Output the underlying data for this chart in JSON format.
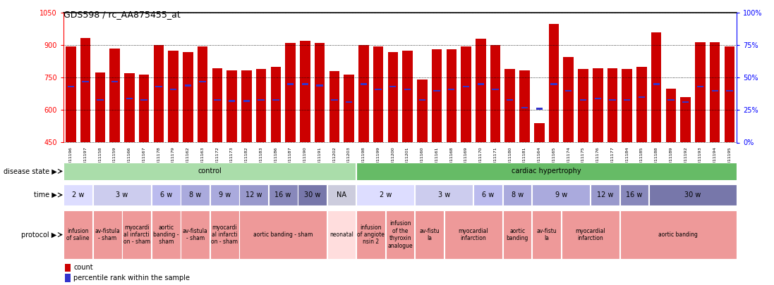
{
  "title": "GDS598 / rc_AA875455_at",
  "samples": [
    "GSM11196",
    "GSM11197",
    "GSM11158",
    "GSM11159",
    "GSM11166",
    "GSM11167",
    "GSM11178",
    "GSM11179",
    "GSM11162",
    "GSM11163",
    "GSM11172",
    "GSM11173",
    "GSM11182",
    "GSM11183",
    "GSM11186",
    "GSM11187",
    "GSM11190",
    "GSM11191",
    "GSM11202",
    "GSM11203",
    "GSM11198",
    "GSM11199",
    "GSM11200",
    "GSM11201",
    "GSM11160",
    "GSM11161",
    "GSM11168",
    "GSM11169",
    "GSM11170",
    "GSM11171",
    "GSM11180",
    "GSM11181",
    "GSM11164",
    "GSM11165",
    "GSM11174",
    "GSM11175",
    "GSM11176",
    "GSM11177",
    "GSM11184",
    "GSM11185",
    "GSM11188",
    "GSM11189",
    "GSM11192",
    "GSM11193",
    "GSM11194",
    "GSM11195"
  ],
  "counts": [
    895,
    935,
    775,
    885,
    770,
    765,
    900,
    875,
    870,
    895,
    795,
    785,
    785,
    790,
    800,
    910,
    920,
    910,
    780,
    765,
    900,
    895,
    870,
    875,
    740,
    880,
    880,
    895,
    930,
    900,
    790,
    785,
    540,
    1000,
    845,
    790,
    795,
    795,
    790,
    800,
    960,
    700,
    660,
    915,
    915,
    895
  ],
  "percentile_ranks_pct": [
    43,
    47,
    33,
    47,
    34,
    33,
    43,
    41,
    44,
    47,
    33,
    32,
    32,
    33,
    33,
    45,
    45,
    44,
    33,
    31,
    45,
    41,
    43,
    41,
    33,
    40,
    41,
    43,
    45,
    41,
    33,
    27,
    26,
    45,
    40,
    33,
    34,
    33,
    33,
    35,
    45,
    33,
    31,
    43,
    40,
    40
  ],
  "ylim_left": [
    450,
    1050
  ],
  "ylim_right": [
    0,
    100
  ],
  "yticks_left": [
    450,
    600,
    750,
    900,
    1050
  ],
  "yticks_right": [
    0,
    25,
    50,
    75,
    100
  ],
  "bar_color": "#CC0000",
  "blue_color": "#3333CC",
  "disease_state_groups": [
    {
      "label": "control",
      "start": 0,
      "end": 20,
      "color": "#AADDAA"
    },
    {
      "label": "cardiac hypertrophy",
      "start": 20,
      "end": 46,
      "color": "#66BB66"
    }
  ],
  "time_groups": [
    {
      "label": "2 w",
      "start": 0,
      "end": 2,
      "color": "#DDDDFF"
    },
    {
      "label": "3 w",
      "start": 2,
      "end": 6,
      "color": "#CCCCEE"
    },
    {
      "label": "6 w",
      "start": 6,
      "end": 8,
      "color": "#BBBBEE"
    },
    {
      "label": "8 w",
      "start": 8,
      "end": 10,
      "color": "#AAAADD"
    },
    {
      "label": "9 w",
      "start": 10,
      "end": 12,
      "color": "#AAAADD"
    },
    {
      "label": "12 w",
      "start": 12,
      "end": 14,
      "color": "#9999CC"
    },
    {
      "label": "16 w",
      "start": 14,
      "end": 16,
      "color": "#8888BB"
    },
    {
      "label": "30 w",
      "start": 16,
      "end": 18,
      "color": "#7777AA"
    },
    {
      "label": "NA",
      "start": 18,
      "end": 20,
      "color": "#CCCCDD"
    },
    {
      "label": "2 w",
      "start": 20,
      "end": 24,
      "color": "#DDDDFF"
    },
    {
      "label": "3 w",
      "start": 24,
      "end": 28,
      "color": "#CCCCEE"
    },
    {
      "label": "6 w",
      "start": 28,
      "end": 30,
      "color": "#BBBBEE"
    },
    {
      "label": "8 w",
      "start": 30,
      "end": 32,
      "color": "#AAAADD"
    },
    {
      "label": "9 w",
      "start": 32,
      "end": 36,
      "color": "#AAAADD"
    },
    {
      "label": "12 w",
      "start": 36,
      "end": 38,
      "color": "#9999CC"
    },
    {
      "label": "16 w",
      "start": 38,
      "end": 40,
      "color": "#8888BB"
    },
    {
      "label": "30 w",
      "start": 40,
      "end": 46,
      "color": "#7777AA"
    }
  ],
  "protocol_groups": [
    {
      "label": "infusion\nof saline",
      "start": 0,
      "end": 2,
      "color": "#EE9999"
    },
    {
      "label": "av-fistula\n- sham",
      "start": 2,
      "end": 4,
      "color": "#EE9999"
    },
    {
      "label": "myocardi\nal infarcti\non - sham",
      "start": 4,
      "end": 6,
      "color": "#EE9999"
    },
    {
      "label": "aortic\nbanding -\n sham",
      "start": 6,
      "end": 8,
      "color": "#EE9999"
    },
    {
      "label": "av-fistula\n- sham",
      "start": 8,
      "end": 10,
      "color": "#EE9999"
    },
    {
      "label": "myocardi\nal infarcti\non - sham",
      "start": 10,
      "end": 12,
      "color": "#EE9999"
    },
    {
      "label": "aortic banding - sham",
      "start": 12,
      "end": 18,
      "color": "#EE9999"
    },
    {
      "label": "neonatal",
      "start": 18,
      "end": 20,
      "color": "#FFDDDD"
    },
    {
      "label": "infusion\nof angiote\nnsin 2",
      "start": 20,
      "end": 22,
      "color": "#EE9999"
    },
    {
      "label": "infusion\nof the\nthyroxin\nanalogue",
      "start": 22,
      "end": 24,
      "color": "#EE9999"
    },
    {
      "label": "av-fistu\nla",
      "start": 24,
      "end": 26,
      "color": "#EE9999"
    },
    {
      "label": "myocardial\ninfarction",
      "start": 26,
      "end": 30,
      "color": "#EE9999"
    },
    {
      "label": "aortic\nbanding",
      "start": 30,
      "end": 32,
      "color": "#EE9999"
    },
    {
      "label": "av-fistu\nla",
      "start": 32,
      "end": 34,
      "color": "#EE9999"
    },
    {
      "label": "myocardial\ninfarction",
      "start": 34,
      "end": 38,
      "color": "#EE9999"
    },
    {
      "label": "aortic banding",
      "start": 38,
      "end": 46,
      "color": "#EE9999"
    }
  ],
  "background_color": "#FFFFFF"
}
